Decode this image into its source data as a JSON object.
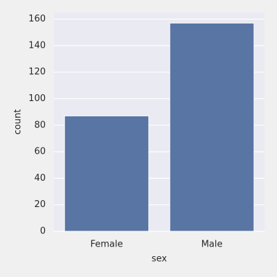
{
  "chart_data": {
    "type": "bar",
    "categories": [
      "Female",
      "Male"
    ],
    "values": [
      87,
      157
    ],
    "color": "#5875a4",
    "x_label": "sex",
    "y_label": "count",
    "ylim": [
      0,
      165
    ],
    "yticks": [
      0,
      20,
      40,
      60,
      80,
      100,
      120,
      140,
      160
    ],
    "grid": true
  }
}
